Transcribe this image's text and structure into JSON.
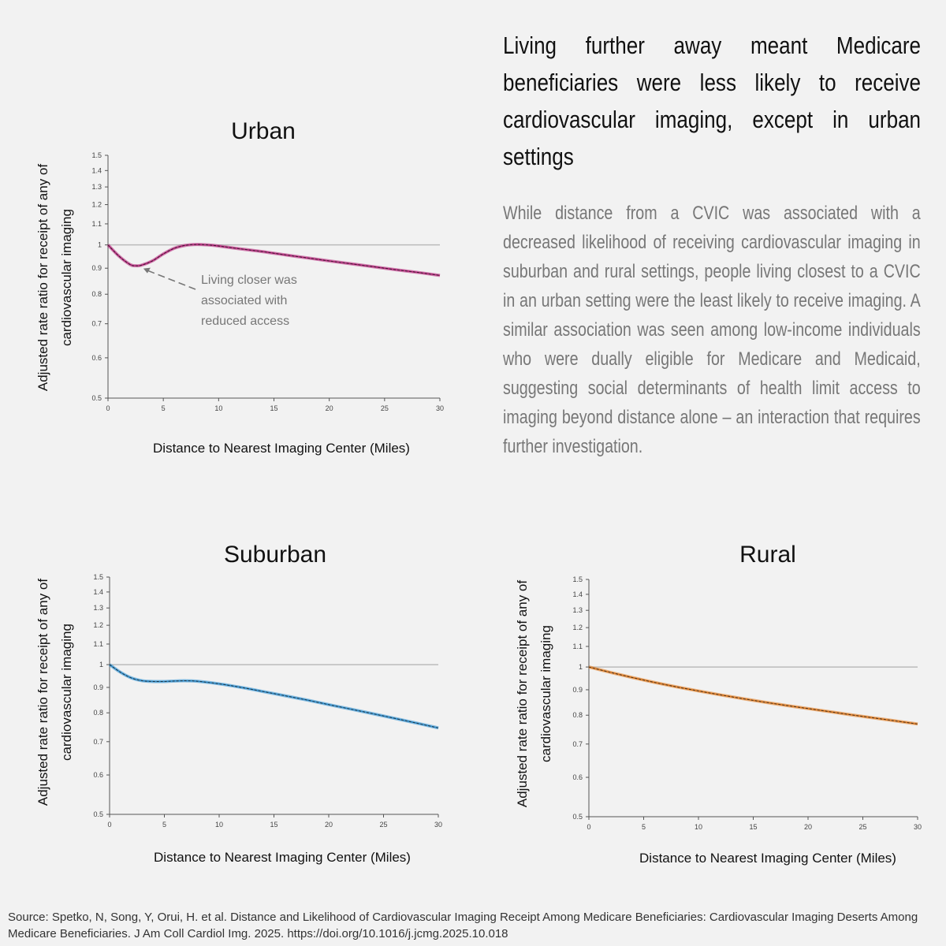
{
  "headline": "Living further away meant Medicare beneficiaries were less likely to receive cardiovascular imaging, except in urban settings",
  "body": "While distance from a CVIC was associated with a decreased likelihood of receiving cardiovascular imaging in suburban and rural settings, people living closest to a CVIC in an urban setting were the least likely to receive imaging. A similar association was seen among low-income individuals who were dually eligible for Medicare and Medicaid, suggesting social determinants of health limit access to imaging beyond distance alone – an interaction that requires further investigation.",
  "source": "Source: Spetko, N, Song, Y, Orui, H. et al. Distance and Likelihood of Cardiovascular Imaging Receipt Among Medicare Beneficiaries: Cardiovascular Imaging Deserts Among Medicare Beneficiaries. J Am Coll Cardiol Img. 2025. https://doi.org/10.1016/j.jcmg.2025.10.018",
  "chart_data": [
    {
      "type": "line",
      "title": "Urban",
      "ylabel_line1": "Adjusted rate ratio for receipt of any of",
      "ylabel_line2": "cardiovascular imaging",
      "xlabel": "Distance to Nearest Imaging Center (Miles)",
      "xlim": [
        0,
        30
      ],
      "ylim": [
        0.5,
        1.5
      ],
      "y_scale": "log",
      "x_ticks": [
        0,
        5,
        10,
        15,
        20,
        25,
        30
      ],
      "y_ticks": [
        0.5,
        0.6,
        0.7,
        0.8,
        0.9,
        1,
        1.1,
        1.2,
        1.3,
        1.4,
        1.5
      ],
      "reference_line": 1,
      "color": "#b5257a",
      "x": [
        0,
        1,
        2,
        2.5,
        3,
        4,
        5,
        6,
        7,
        8,
        9,
        10,
        12,
        14,
        16,
        18,
        20,
        22,
        24,
        26,
        28,
        30
      ],
      "values": [
        1.0,
        0.95,
        0.915,
        0.91,
        0.912,
        0.93,
        0.96,
        0.985,
        0.998,
        1.002,
        1.0,
        0.995,
        0.982,
        0.97,
        0.956,
        0.943,
        0.93,
        0.918,
        0.906,
        0.894,
        0.883,
        0.871
      ],
      "annotation": [
        "Living closer was",
        "associated with",
        "reduced access"
      ]
    },
    {
      "type": "line",
      "title": "Suburban",
      "ylabel_line1": "Adjusted rate ratio for receipt of any of",
      "ylabel_line2": "cardiovascular imaging",
      "xlabel": "Distance to Nearest Imaging Center (Miles)",
      "xlim": [
        0,
        30
      ],
      "ylim": [
        0.5,
        1.5
      ],
      "y_scale": "log",
      "x_ticks": [
        0,
        5,
        10,
        15,
        20,
        25,
        30
      ],
      "y_ticks": [
        0.5,
        0.6,
        0.7,
        0.8,
        0.9,
        1,
        1.1,
        1.2,
        1.3,
        1.4,
        1.5
      ],
      "reference_line": 1,
      "color": "#2f8fcf",
      "x": [
        0,
        1,
        2,
        3,
        4,
        5,
        6,
        7,
        8,
        10,
        12,
        14,
        16,
        18,
        20,
        22,
        24,
        26,
        28,
        30
      ],
      "values": [
        1.0,
        0.965,
        0.94,
        0.928,
        0.925,
        0.925,
        0.927,
        0.928,
        0.926,
        0.915,
        0.9,
        0.883,
        0.866,
        0.849,
        0.831,
        0.814,
        0.797,
        0.78,
        0.763,
        0.746
      ]
    },
    {
      "type": "line",
      "title": "Rural",
      "ylabel_line1": "Adjusted rate ratio for receipt of any of",
      "ylabel_line2": "cardiovascular imaging",
      "xlabel": "Distance to Nearest Imaging Center (Miles)",
      "xlim": [
        0,
        30
      ],
      "ylim": [
        0.5,
        1.5
      ],
      "y_scale": "log",
      "x_ticks": [
        0,
        5,
        10,
        15,
        20,
        25,
        30
      ],
      "y_ticks": [
        0.5,
        0.6,
        0.7,
        0.8,
        0.9,
        1,
        1.1,
        1.2,
        1.3,
        1.4,
        1.5
      ],
      "reference_line": 1,
      "color": "#e07a1f",
      "x": [
        0,
        2,
        4,
        6,
        8,
        10,
        12,
        14,
        16,
        18,
        20,
        22,
        24,
        26,
        28,
        30
      ],
      "values": [
        1.0,
        0.975,
        0.952,
        0.931,
        0.912,
        0.895,
        0.879,
        0.864,
        0.85,
        0.837,
        0.825,
        0.813,
        0.801,
        0.79,
        0.779,
        0.768
      ]
    }
  ]
}
